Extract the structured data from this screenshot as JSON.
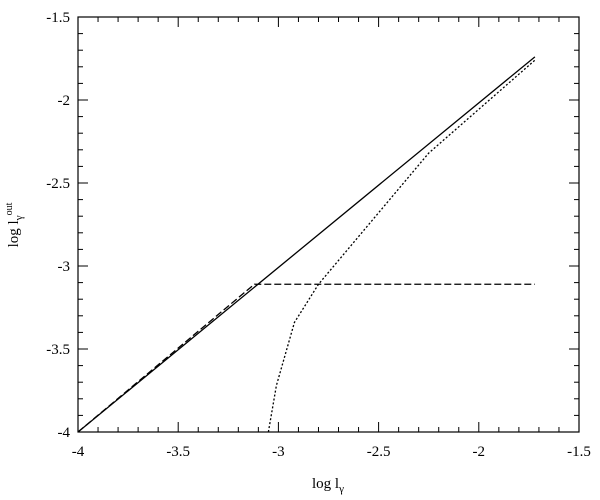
{
  "chart_data": {
    "type": "line",
    "xlabel": {
      "text": "log l",
      "sub": "γ"
    },
    "ylabel": {
      "text": "log l",
      "sub": "γ",
      "sup": "out"
    },
    "xlim": [
      -4,
      -1.5
    ],
    "ylim": [
      -4,
      -1.5
    ],
    "xticks": [
      -4,
      -3.5,
      -3,
      -2.5,
      -2,
      -1.5
    ],
    "yticks": [
      -4,
      -3.5,
      -3,
      -2.5,
      -2,
      -1.5
    ],
    "xminorticks": [
      -3.9,
      -3.8,
      -3.7,
      -3.6,
      -3.4,
      -3.3,
      -3.2,
      -3.1,
      -2.9,
      -2.8,
      -2.7,
      -2.6,
      -2.4,
      -2.3,
      -2.2,
      -2.1,
      -1.9,
      -1.8,
      -1.7,
      -1.6
    ],
    "yminorticks": [
      -3.9,
      -3.8,
      -3.7,
      -3.6,
      -3.4,
      -3.3,
      -3.2,
      -3.1,
      -2.9,
      -2.8,
      -2.7,
      -2.6,
      -2.4,
      -2.3,
      -2.2,
      -2.1,
      -1.9,
      -1.8,
      -1.7,
      -1.6
    ],
    "series": [
      {
        "color": "#000000",
        "dash": "solid",
        "x": [
          -4,
          -1.72
        ],
        "values": [
          -4,
          -1.74
        ]
      },
      {
        "color": "#000000",
        "dash": "dashed",
        "x": [
          -4,
          -3.12,
          -1.72
        ],
        "values": [
          -4,
          -3.11,
          -3.11
        ]
      },
      {
        "color": "#000000",
        "dash": "dotted",
        "x": [
          -3.05,
          -3.01,
          -2.92,
          -2.8,
          -2.25,
          -1.72
        ],
        "values": [
          -4,
          -3.72,
          -3.34,
          -3.11,
          -2.32,
          -1.76
        ]
      }
    ]
  }
}
